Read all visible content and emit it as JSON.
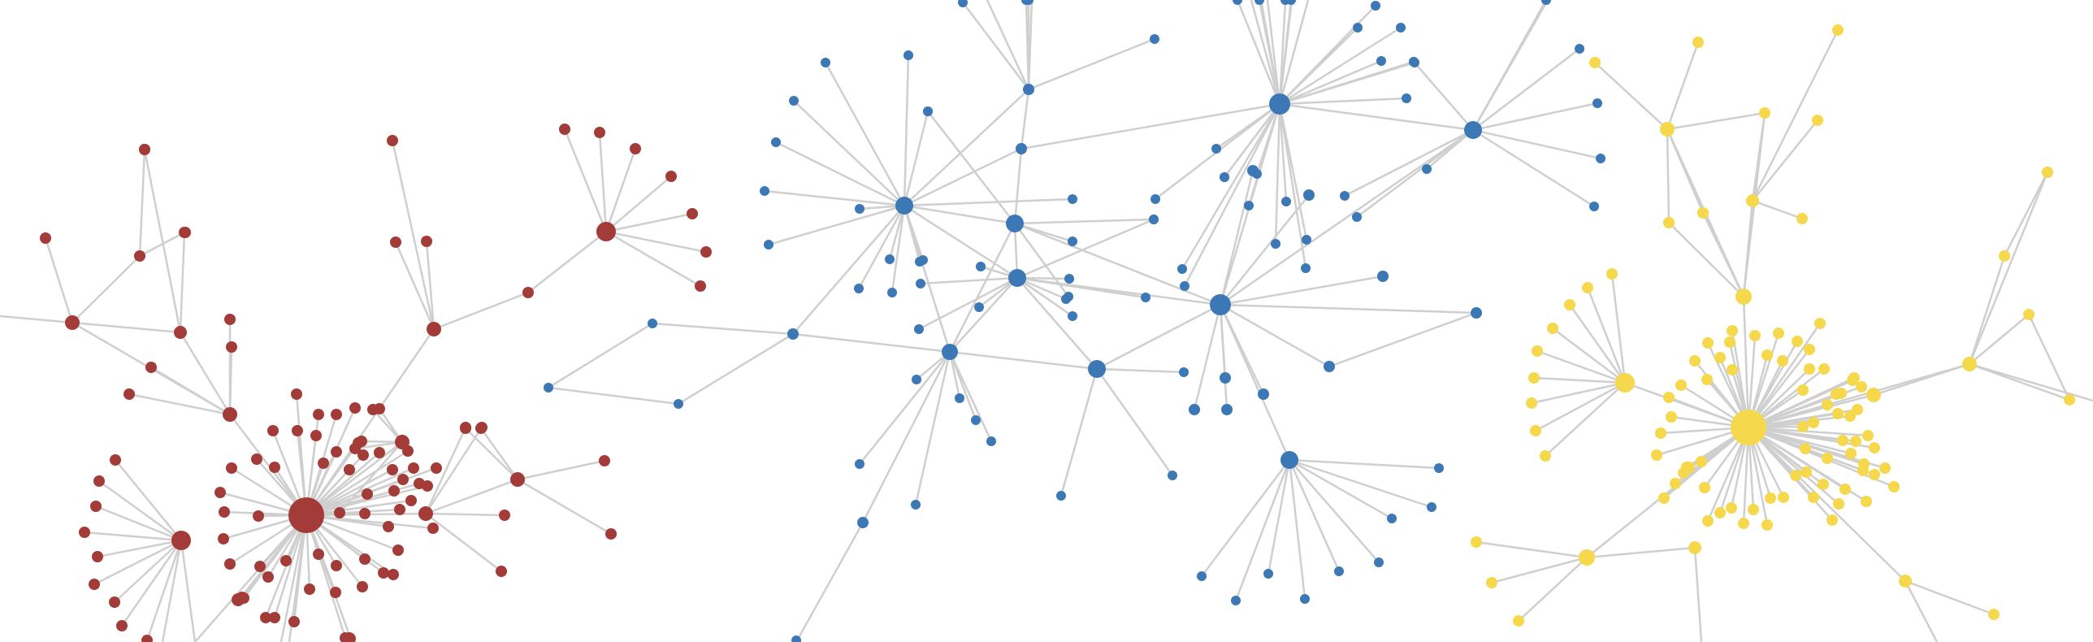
{
  "graph": {
    "type": "force-directed network",
    "clusters": [
      {
        "id": "red",
        "color": "#a33c38"
      },
      {
        "id": "blue",
        "color": "#3b78b5"
      },
      {
        "id": "yellow",
        "color": "#f6d84c"
      }
    ],
    "edge_color": "#cfcfcf",
    "background": "#ffffff"
  }
}
